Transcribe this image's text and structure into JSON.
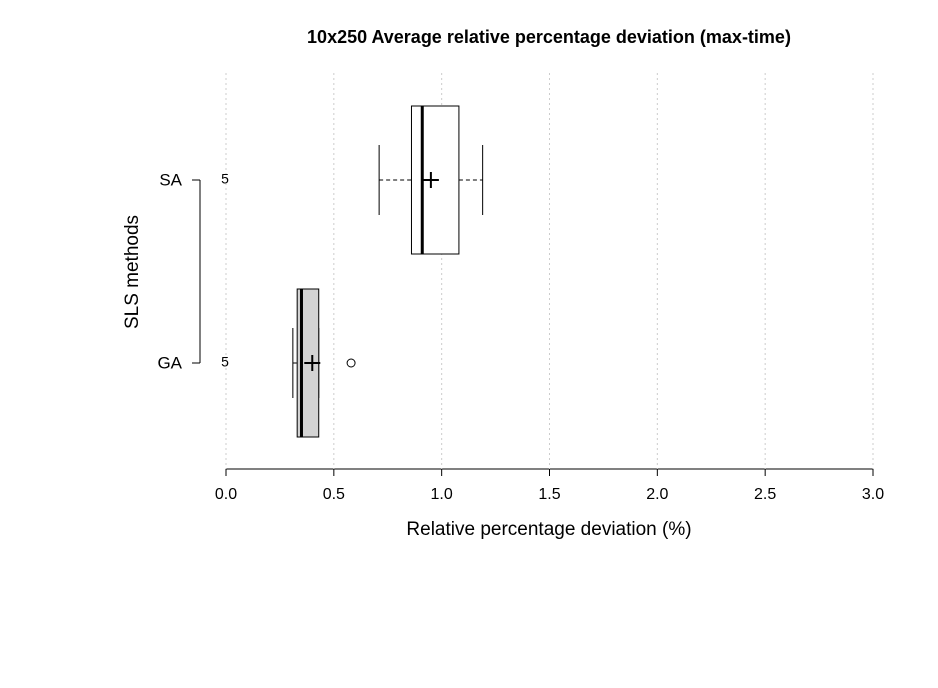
{
  "chart_data": {
    "type": "boxplot",
    "title": "10x250 Average relative percentage deviation (max-time)",
    "xlabel": "Relative percentage deviation (%)",
    "ylabel": "SLS methods",
    "categories": [
      "SA",
      "GA"
    ],
    "boxes": [
      {
        "min": 0.71,
        "q1": 0.86,
        "median": 0.91,
        "q3": 1.08,
        "max": 1.19,
        "mean": 0.95,
        "outliers": [],
        "n": 5,
        "color": "#ffffff"
      },
      {
        "min": 0.31,
        "q1": 0.33,
        "median": 0.35,
        "q3": 0.43,
        "max": 0.43,
        "mean": 0.4,
        "outliers": [
          0.58
        ],
        "n": 5,
        "color": "#d3d3d3"
      }
    ],
    "xlim": [
      0,
      3
    ],
    "xticks": [
      {
        "value": 0,
        "label": "0.0"
      },
      0.5,
      {
        "value": 1,
        "label": "1.0"
      },
      1.5,
      {
        "value": 2,
        "label": "2.0"
      },
      2.5,
      {
        "value": 3,
        "label": "3.0"
      }
    ],
    "grid": true
  }
}
